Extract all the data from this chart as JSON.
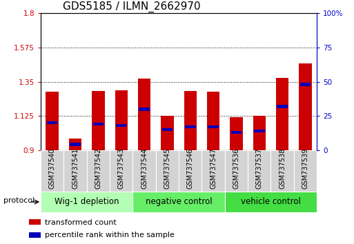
{
  "title": "GDS5185 / ILMN_2662970",
  "samples": [
    "GSM737540",
    "GSM737541",
    "GSM737542",
    "GSM737543",
    "GSM737544",
    "GSM737545",
    "GSM737546",
    "GSM737547",
    "GSM737536",
    "GSM737537",
    "GSM737538",
    "GSM737539"
  ],
  "red_values": [
    1.285,
    0.975,
    1.29,
    1.295,
    1.37,
    1.125,
    1.29,
    1.285,
    1.115,
    1.125,
    1.375,
    1.47
  ],
  "blue_values": [
    0.2,
    0.04,
    0.19,
    0.18,
    0.3,
    0.15,
    0.17,
    0.17,
    0.13,
    0.14,
    0.32,
    0.48
  ],
  "groups": [
    {
      "label": "Wig-1 depletion",
      "start": 0,
      "end": 4
    },
    {
      "label": "negative control",
      "start": 4,
      "end": 8
    },
    {
      "label": "vehicle control",
      "start": 8,
      "end": 12
    }
  ],
  "group_colors": [
    "#b3ffb3",
    "#66ee66",
    "#44dd44"
  ],
  "ylim": [
    0.9,
    1.8
  ],
  "yticks_left": [
    0.9,
    1.125,
    1.35,
    1.575,
    1.8
  ],
  "yticks_right": [
    0,
    25,
    50,
    75,
    100
  ],
  "ylabel_left_color": "#cc0000",
  "ylabel_right_color": "#0000cc",
  "bar_width": 0.55,
  "base_value": 0.9,
  "protocol_label": "protocol",
  "legend_red": "transformed count",
  "legend_blue": "percentile rank within the sample",
  "title_fontsize": 11,
  "tick_fontsize": 7.5,
  "label_fontsize": 7,
  "group_label_fontsize": 8.5,
  "blue_bar_height": 0.022
}
